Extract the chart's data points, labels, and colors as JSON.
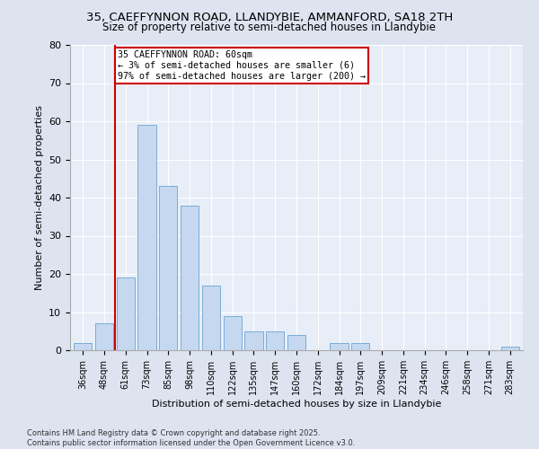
{
  "title1": "35, CAEFFYNNON ROAD, LLANDYBIE, AMMANFORD, SA18 2TH",
  "title2": "Size of property relative to semi-detached houses in Llandybie",
  "xlabel": "Distribution of semi-detached houses by size in Llandybie",
  "ylabel": "Number of semi-detached properties",
  "categories": [
    "36sqm",
    "48sqm",
    "61sqm",
    "73sqm",
    "85sqm",
    "98sqm",
    "110sqm",
    "122sqm",
    "135sqm",
    "147sqm",
    "160sqm",
    "172sqm",
    "184sqm",
    "197sqm",
    "209sqm",
    "221sqm",
    "234sqm",
    "246sqm",
    "258sqm",
    "271sqm",
    "283sqm"
  ],
  "values": [
    2,
    7,
    19,
    59,
    43,
    38,
    17,
    9,
    5,
    5,
    4,
    0,
    2,
    2,
    0,
    0,
    0,
    0,
    0,
    0,
    1
  ],
  "bar_color": "#c5d8f0",
  "bar_edge_color": "#7aadd4",
  "vline_x_index": 2,
  "vline_color": "#cc0000",
  "annotation_title": "35 CAEFFYNNON ROAD: 60sqm",
  "annotation_line1": "← 3% of semi-detached houses are smaller (6)",
  "annotation_line2": "97% of semi-detached houses are larger (200) →",
  "annotation_box_color": "#ffffff",
  "annotation_box_edge": "#cc0000",
  "ylim": [
    0,
    80
  ],
  "yticks": [
    0,
    10,
    20,
    30,
    40,
    50,
    60,
    70,
    80
  ],
  "footer1": "Contains HM Land Registry data © Crown copyright and database right 2025.",
  "footer2": "Contains public sector information licensed under the Open Government Licence v3.0.",
  "bg_color": "#dde4f0",
  "plot_bg_color": "#e8eef8"
}
